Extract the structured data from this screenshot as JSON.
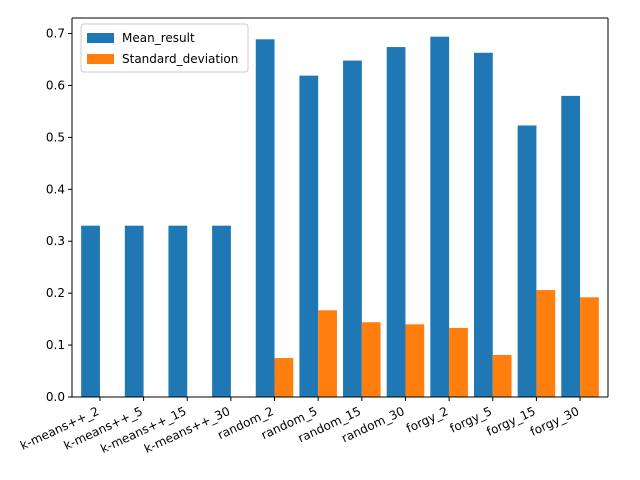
{
  "chart_data": {
    "type": "bar",
    "categories": [
      "k-means++_2",
      "k-means++_5",
      "k-means++_15",
      "k-means++_30",
      "random_2",
      "random_5",
      "random_15",
      "random_30",
      "forgy_2",
      "forgy_5",
      "forgy_15",
      "forgy_30"
    ],
    "series": [
      {
        "name": "Mean_result",
        "color": "#1f77b4",
        "values": [
          0.33,
          0.33,
          0.33,
          0.33,
          0.689,
          0.619,
          0.648,
          0.674,
          0.694,
          0.663,
          0.523,
          0.58
        ]
      },
      {
        "name": "Standard_deviation",
        "color": "#ff7f0e",
        "values": [
          0.0,
          0.0,
          0.0,
          0.0,
          0.075,
          0.167,
          0.144,
          0.14,
          0.133,
          0.081,
          0.206,
          0.192
        ]
      }
    ],
    "ylim": [
      0,
      0.73
    ],
    "yticks": [
      "0.0",
      "0.1",
      "0.2",
      "0.3",
      "0.4",
      "0.5",
      "0.6",
      "0.7"
    ],
    "xtick_rotation": 25,
    "legend": "top-left",
    "grid": false,
    "title": "",
    "xlabel": "",
    "ylabel": ""
  }
}
